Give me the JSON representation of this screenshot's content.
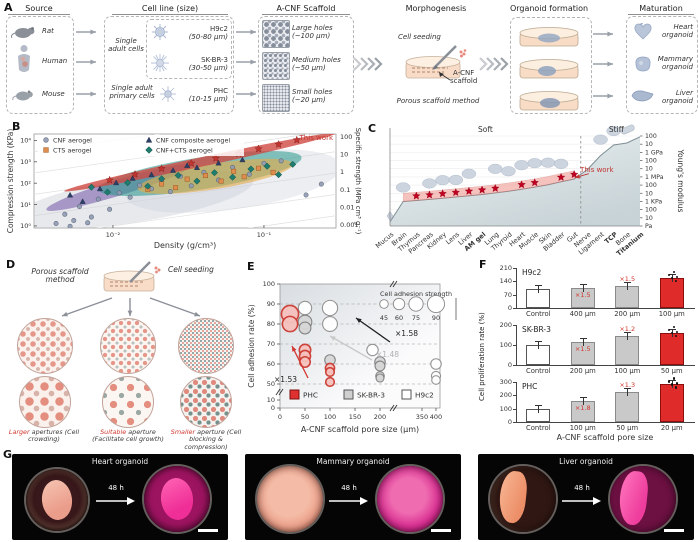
{
  "labels": {
    "a": "A",
    "b": "B",
    "c": "C",
    "d": "D",
    "e": "E",
    "f": "F",
    "g": "G"
  },
  "panel_a": {
    "source": {
      "title": "Source",
      "items": [
        {
          "icon": "rat-icon",
          "label": "Rat"
        },
        {
          "icon": "human-icon",
          "label": "Human"
        },
        {
          "icon": "mouse-icon",
          "label": "Mouse"
        }
      ]
    },
    "cell_line": {
      "title": "Cell line (size)",
      "group1": "Single adult cells",
      "group2": "Single adult primary cells",
      "cells": [
        {
          "name": "H9c2",
          "size": "(50-80 µm)"
        },
        {
          "name": "SK-BR-3",
          "size": "(30-50 µm)"
        },
        {
          "name": "PHC",
          "size": "(10-15 µm)"
        }
      ]
    },
    "scaffold": {
      "title": "A-CNF Scaffold",
      "items": [
        {
          "name": "Large holes",
          "size": "(~100 µm)"
        },
        {
          "name": "Medium holes",
          "size": "(~50 µm)"
        },
        {
          "name": "Small holes",
          "size": "(~20 µm)"
        }
      ]
    },
    "morphogenesis": {
      "title": "Morphogenesis",
      "cell_seeding": "Cell seeding",
      "scaffold_line1": "A-CNF",
      "scaffold_line2": "scaffold",
      "method": "Porous scaffold method"
    },
    "organoid_formation": {
      "title": "Organoid formation"
    },
    "maturation": {
      "title": "Maturation",
      "items": [
        {
          "icon": "heart-icon",
          "label": "Heart organoid"
        },
        {
          "icon": "mammary-icon",
          "label": "Mammary organoid"
        },
        {
          "icon": "liver-icon",
          "label": "Liver organoid"
        }
      ]
    }
  },
  "panel_d": {
    "method": "Porous scaffold method",
    "seeding": "Cell seeding",
    "captions": [
      {
        "keyword": "Larger",
        "rest": " apertures (Cell crowding)"
      },
      {
        "keyword": "Suitable",
        "rest": " aperture (Facilitate cell growth)"
      },
      {
        "keyword": "Smaller",
        "rest": " aperture (Cell blocking & compression)"
      }
    ]
  },
  "panel_g": {
    "photos": [
      {
        "title": "Heart organoid",
        "time": "48 h"
      },
      {
        "title": "Mammary organoid",
        "time": "48 h"
      },
      {
        "title": "Liver organoid",
        "time": "48 h"
      }
    ]
  },
  "chart_data": [
    {
      "id": "B",
      "type": "scatter",
      "annotation": "This work",
      "xlabel": "Density (g/cm³)",
      "ylabel": "Compression strength (KPa)",
      "y2label": "Specific strength (MPa cm³ g⁻¹)",
      "xscale": "log",
      "yscale": "log",
      "xlim": [
        0.003,
        0.3
      ],
      "ylim": [
        0.8,
        20000
      ],
      "xticks": [
        {
          "v": 0.01,
          "label": "10⁻²"
        },
        {
          "v": 0.1,
          "label": "10⁻¹"
        }
      ],
      "yticks": [
        {
          "v": 1,
          "label": "10⁰"
        },
        {
          "v": 10,
          "label": "10¹"
        },
        {
          "v": 100,
          "label": "10²"
        },
        {
          "v": 1000,
          "label": "10³"
        },
        {
          "v": 10000,
          "label": "10⁴"
        }
      ],
      "y2ticks": [
        "100",
        "10",
        "1",
        "0.1",
        "0.01",
        "0.001"
      ],
      "legend": [
        {
          "label": "CNF aerogel",
          "marker": "circle",
          "color": "#8f9bb3"
        },
        {
          "label": "CNF composite aerogel",
          "marker": "triangle",
          "color": "#2e3f66"
        },
        {
          "label": "CTS aerogel",
          "marker": "square",
          "color": "#de8d4e"
        },
        {
          "label": "CNF+CTS aerogel",
          "marker": "diamond",
          "color": "#1f7d6f"
        }
      ],
      "series": [
        {
          "name": "CNF aerogel",
          "marker": "circle",
          "color": "#8f9bb3",
          "points": [
            [
              0.0042,
              1.3
            ],
            [
              0.0048,
              3.5
            ],
            [
              0.0055,
              1.8
            ],
            [
              0.006,
              8
            ],
            [
              0.0072,
              2.6
            ],
            [
              0.008,
              18
            ],
            [
              0.0095,
              6
            ],
            [
              0.011,
              35
            ],
            [
              0.013,
              22
            ],
            [
              0.015,
              80
            ],
            [
              0.018,
              55
            ],
            [
              0.021,
              130
            ],
            [
              0.024,
              40
            ],
            [
              0.028,
              210
            ],
            [
              0.033,
              75
            ],
            [
              0.04,
              320
            ],
            [
              0.05,
              140
            ],
            [
              0.062,
              550
            ],
            [
              0.08,
              260
            ],
            [
              0.1,
              850
            ],
            [
              0.13,
              1100
            ],
            [
              0.0052,
              0.95
            ],
            [
              0.0068,
              1.4
            ],
            [
              0.19,
              28
            ],
            [
              0.24,
              90
            ]
          ]
        },
        {
          "name": "CNF composite aerogel",
          "marker": "triangle",
          "color": "#2e3f66",
          "points": [
            [
              0.0052,
              28
            ],
            [
              0.0063,
              14
            ],
            [
              0.0082,
              55
            ],
            [
              0.0105,
              105
            ],
            [
              0.0135,
              170
            ],
            [
              0.018,
              250
            ],
            [
              0.025,
              400
            ],
            [
              0.036,
              540
            ],
            [
              0.05,
              880
            ],
            [
              0.072,
              1250
            ],
            [
              0.031,
              680
            ]
          ]
        },
        {
          "name": "CTS aerogel",
          "marker": "square",
          "color": "#de8d4e",
          "points": [
            [
              0.017,
              52
            ],
            [
              0.021,
              92
            ],
            [
              0.026,
              62
            ],
            [
              0.031,
              155
            ],
            [
              0.041,
              230
            ],
            [
              0.052,
              125
            ],
            [
              0.063,
              360
            ],
            [
              0.074,
              200
            ],
            [
              0.092,
              500
            ],
            [
              0.115,
              320
            ]
          ]
        },
        {
          "name": "CNF+CTS aerogel",
          "marker": "diamond",
          "color": "#1f7d6f",
          "points": [
            [
              0.0072,
              65
            ],
            [
              0.0092,
              38
            ],
            [
              0.0125,
              105
            ],
            [
              0.017,
              72
            ],
            [
              0.021,
              160
            ],
            [
              0.027,
              230
            ],
            [
              0.036,
              125
            ],
            [
              0.047,
              310
            ],
            [
              0.062,
              190
            ],
            [
              0.082,
              460
            ],
            [
              0.105,
              620
            ],
            [
              0.125,
              250
            ],
            [
              0.155,
              760
            ]
          ]
        },
        {
          "name": "This work",
          "marker": "star",
          "color": "#c23531",
          "points": [
            [
              0.0095,
              140
            ],
            [
              0.014,
              260
            ],
            [
              0.021,
              480
            ],
            [
              0.033,
              850
            ],
            [
              0.048,
              1450
            ],
            [
              0.068,
              2400
            ],
            [
              0.092,
              4000
            ],
            [
              0.125,
              6500
            ],
            [
              0.165,
              10500
            ]
          ]
        }
      ],
      "regions": [
        {
          "name": "cnf-aerogel-cloud-left",
          "color": "#c2c8d2",
          "opacity": 0.4,
          "cx": 0.33,
          "cy": 0.7,
          "rx": 0.4,
          "ry": 0.24,
          "rot": -9
        },
        {
          "name": "cnf-aerogel-cloud-right",
          "color": "#ccd1da",
          "opacity": 0.38,
          "cx": 0.66,
          "cy": 0.5,
          "rx": 0.36,
          "ry": 0.3,
          "rot": -8
        },
        {
          "name": "cnf-composite-cloud",
          "color": "#7b61ab",
          "opacity": 0.6,
          "cx": 0.28,
          "cy": 0.57,
          "rx": 0.25,
          "ry": 0.085,
          "rot": -17
        },
        {
          "name": "cnf-cts-cloud",
          "color": "#27978a",
          "opacity": 0.55,
          "cx": 0.55,
          "cy": 0.42,
          "rx": 0.34,
          "ry": 0.17,
          "rot": -9
        },
        {
          "name": "cts-cloud",
          "color": "#e7ac47",
          "opacity": 0.6,
          "cx": 0.6,
          "cy": 0.45,
          "rx": 0.26,
          "ry": 0.135,
          "rot": -9
        },
        {
          "name": "this-work-band",
          "color": "#cf4a44",
          "opacity": 0.8,
          "cx": 0.55,
          "cy": 0.3,
          "rx": 0.46,
          "ry": 0.05,
          "rot": -12
        }
      ]
    },
    {
      "id": "C",
      "type": "area",
      "soft_label": "Soft",
      "stiff_label": "Stiff",
      "annotation": "This work",
      "ylabel_right": "Young's modulus",
      "right_ticks": [
        {
          "v": 11,
          "label": "100"
        },
        {
          "v": 10,
          "label": "10"
        },
        {
          "v": 9,
          "label": "1 GPa"
        },
        {
          "v": 8,
          "label": "100"
        },
        {
          "v": 7,
          "label": "10"
        },
        {
          "v": 6,
          "label": "1 MPa"
        },
        {
          "v": 5,
          "label": "100"
        },
        {
          "v": 4,
          "label": "10"
        },
        {
          "v": 3,
          "label": "1 KPa"
        },
        {
          "v": 2,
          "label": "100"
        },
        {
          "v": 1,
          "label": "10"
        },
        {
          "v": 0,
          "label": "Pa"
        }
      ],
      "categories": [
        "Mucus",
        "Brain",
        "Thymus",
        "Pancreas",
        "Kidney",
        "Lens",
        "Liver",
        "AM gel",
        "Lung",
        "Thyroid",
        "Heart",
        "Muscle",
        "Skin",
        "Bladder",
        "Gut",
        "Nerve",
        "Ligament",
        "TCP",
        "Bone",
        "Titanium"
      ],
      "bold_categories": [
        "AM gel",
        "TCP",
        "Titanium"
      ],
      "values_log10_pa": [
        0.5,
        3.0,
        3.12,
        3.25,
        3.4,
        3.55,
        3.7,
        3.85,
        4.05,
        4.25,
        4.5,
        4.75,
        5.05,
        5.4,
        5.75,
        6.9,
        8.6,
        9.9,
        10.15,
        10.9
      ],
      "star_categories": [
        "Thymus",
        "Pancreas",
        "Kidney",
        "Lens",
        "Liver",
        "AM gel",
        "Lung",
        "Heart",
        "Muscle",
        "Bladder",
        "Gut"
      ],
      "band": {
        "start_index": 1,
        "end_index": 14,
        "offset_log10": 1.0
      },
      "divider_between": [
        "Gut",
        "Nerve"
      ],
      "ylim_log10": [
        0,
        11
      ]
    },
    {
      "id": "E",
      "type": "bubble",
      "xlabel": "A-CNF scaffold pore size (µm)",
      "ylabel": "Cell adhesion rate (%)",
      "xticks": [
        0,
        50,
        100,
        150,
        200,
        350,
        400
      ],
      "yticks": [
        0,
        10,
        50,
        60,
        70,
        80,
        90,
        100
      ],
      "x_break_between": [
        200,
        350
      ],
      "y_break_between": [
        10,
        50
      ],
      "size_legend": {
        "title": "Cell adhesion strength",
        "sizes": [
          45,
          60,
          75,
          90
        ]
      },
      "annotations": [
        {
          "text": "×1.58",
          "color": "#222222"
        },
        {
          "text": "×1.48",
          "color": "#b0b0b0"
        },
        {
          "text": "×1.53",
          "color": "#222222"
        }
      ],
      "legend": [
        {
          "label": "PHC",
          "color": "#e03131"
        },
        {
          "label": "SK-BR-3",
          "color": "#cfcfcf"
        },
        {
          "label": "H9c2",
          "color": "#ffffff"
        }
      ],
      "series": [
        {
          "name": "H9c2",
          "points": [
            {
              "x": 50,
              "y": 88,
              "s": 70
            },
            {
              "x": 100,
              "y": 88,
              "s": 80
            },
            {
              "x": 100,
              "y": 80,
              "s": 78
            },
            {
              "x": 185,
              "y": 67,
              "s": 60
            },
            {
              "x": 400,
              "y": 60,
              "s": 55
            },
            {
              "x": 400,
              "y": 54,
              "s": 48
            },
            {
              "x": 400,
              "y": 52,
              "s": 45
            }
          ]
        },
        {
          "name": "SK-BR-3",
          "points": [
            {
              "x": 50,
              "y": 81,
              "s": 72
            },
            {
              "x": 50,
              "y": 78,
              "s": 62
            },
            {
              "x": 100,
              "y": 62,
              "s": 55
            },
            {
              "x": 200,
              "y": 61,
              "s": 55
            },
            {
              "x": 200,
              "y": 59,
              "s": 52
            },
            {
              "x": 200,
              "y": 54,
              "s": 45
            },
            {
              "x": 200,
              "y": 53,
              "s": 42
            }
          ]
        },
        {
          "name": "PHC",
          "points": [
            {
              "x": 20,
              "y": 85,
              "s": 90
            },
            {
              "x": 20,
              "y": 80,
              "s": 80
            },
            {
              "x": 50,
              "y": 67,
              "s": 60
            },
            {
              "x": 50,
              "y": 64,
              "s": 58
            },
            {
              "x": 50,
              "y": 61,
              "s": 55
            },
            {
              "x": 100,
              "y": 58,
              "s": 48
            },
            {
              "x": 100,
              "y": 56,
              "s": 45
            },
            {
              "x": 100,
              "y": 51,
              "s": 45
            }
          ]
        }
      ]
    },
    {
      "id": "F",
      "type": "bar",
      "xlabel": "A-CNF scaffold pore size",
      "ylabel": "Cell proliferation rate (%)",
      "subplots": [
        {
          "title": "H9c2",
          "ylim": 210,
          "yticks": [
            0,
            70,
            140,
            210
          ],
          "categories": [
            "Control",
            "400 µm",
            "200 µm",
            "100 µm"
          ],
          "values": [
            100,
            104,
            114,
            158
          ],
          "colors": [
            "white",
            "gray",
            "gray",
            "red"
          ],
          "multipliers": [
            {
              "index": 1,
              "text": "×1.5",
              "pos": "inside"
            },
            {
              "index": 2,
              "text": "×1.5",
              "pos": "above"
            }
          ]
        },
        {
          "title": "SK-BR-3",
          "ylim": 200,
          "yticks": [
            0,
            100,
            200
          ],
          "categories": [
            "Control",
            "200 µm",
            "100 µm",
            "50 µm"
          ],
          "values": [
            100,
            113,
            144,
            162
          ],
          "colors": [
            "white",
            "gray",
            "gray",
            "red"
          ],
          "multipliers": [
            {
              "index": 1,
              "text": "×1.5",
              "pos": "inside"
            },
            {
              "index": 2,
              "text": "×1.2",
              "pos": "above"
            }
          ]
        },
        {
          "title": "PHC",
          "ylim": 300,
          "yticks": [
            0,
            100,
            200,
            300
          ],
          "categories": [
            "Control",
            "100 µm",
            "50 µm",
            "20 µm"
          ],
          "values": [
            100,
            158,
            224,
            282
          ],
          "colors": [
            "white",
            "gray",
            "gray",
            "red"
          ],
          "multipliers": [
            {
              "index": 1,
              "text": "×1.8",
              "pos": "inside"
            },
            {
              "index": 2,
              "text": "×1.3",
              "pos": "above"
            }
          ]
        }
      ]
    }
  ]
}
